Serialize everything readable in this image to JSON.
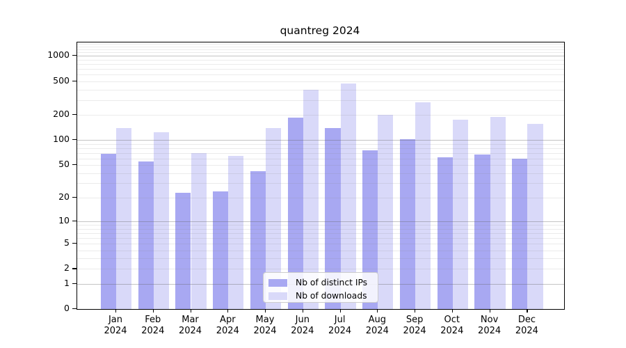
{
  "chart_data": {
    "type": "bar",
    "title": "quantreg 2024",
    "categories": [
      "Jan",
      "Feb",
      "Mar",
      "Apr",
      "May",
      "Jun",
      "Jul",
      "Aug",
      "Sep",
      "Oct",
      "Nov",
      "Dec"
    ],
    "x_year_label": "2024",
    "series": [
      {
        "name": "Nb of distinct IPs",
        "color": "#a8a8f2",
        "values": [
          68,
          55,
          23,
          24,
          42,
          186,
          138,
          76,
          102,
          62,
          67,
          60
        ]
      },
      {
        "name": "Nb of downloads",
        "color": "#d9d9f9",
        "values": [
          140,
          125,
          70,
          65,
          140,
          400,
          475,
          198,
          280,
          175,
          190,
          155
        ]
      }
    ],
    "yscale": "log10(value+1)",
    "yticks": [
      0,
      1,
      2,
      5,
      10,
      20,
      50,
      100,
      200,
      500,
      1000
    ],
    "ylim": [
      0,
      1430
    ],
    "grid": true,
    "grid_major_at": [
      1,
      10,
      100,
      1000
    ],
    "legend_position": "inside-bottom-center",
    "axis_color": "#000000",
    "background": "#ffffff"
  }
}
